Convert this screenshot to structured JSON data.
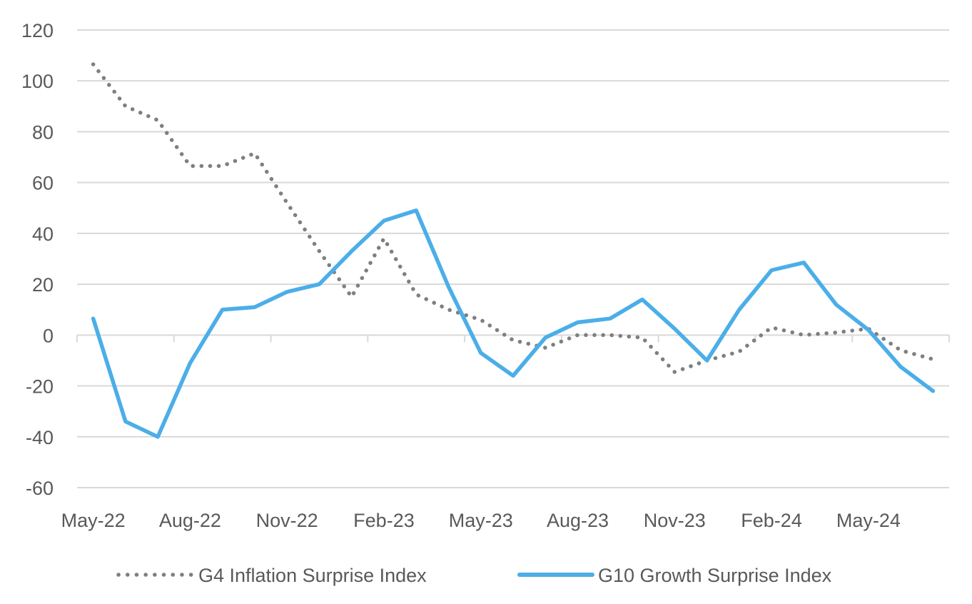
{
  "chart_data": {
    "type": "line",
    "title": "",
    "xlabel": "",
    "ylabel": "",
    "ylim": [
      -60,
      120
    ],
    "yticks": [
      "120",
      "100",
      "80",
      "60",
      "40",
      "20",
      "0",
      "-20",
      "-40",
      "-60"
    ],
    "ytick_values": [
      120,
      100,
      80,
      60,
      40,
      20,
      0,
      -20,
      -40,
      -60
    ],
    "grid": true,
    "legend_position": "bottom",
    "categories": [
      "May-22",
      "Jun-22",
      "Jul-22",
      "Aug-22",
      "Sep-22",
      "Oct-22",
      "Nov-22",
      "Dec-22",
      "Jan-23",
      "Feb-23",
      "Mar-23",
      "Apr-23",
      "May-23",
      "Jun-23",
      "Jul-23",
      "Aug-23",
      "Sep-23",
      "Oct-23",
      "Nov-23",
      "Dec-23",
      "Jan-24",
      "Feb-24",
      "Mar-24",
      "Apr-24",
      "May-24",
      "Jun-24",
      "Jul-24"
    ],
    "xtick_labels": [
      "May-22",
      "Aug-22",
      "Nov-22",
      "Feb-23",
      "May-23",
      "Aug-23",
      "Nov-23",
      "Feb-24",
      "May-24"
    ],
    "series": [
      {
        "name": "G4 Inflation Surprise Index",
        "style": "dotted",
        "color": "#7f7f7f",
        "values": [
          106.5,
          90,
          84.5,
          66.5,
          66.5,
          71.5,
          52,
          33,
          15,
          38,
          16,
          10,
          6,
          -2,
          -5,
          0,
          0,
          -1,
          -14.5,
          -10,
          -6.5,
          3,
          0,
          1,
          2.5,
          -6,
          -9.5
        ]
      },
      {
        "name": "G10 Growth Surprise Index",
        "style": "solid",
        "color": "#4baee8",
        "values": [
          6.5,
          -34,
          -40,
          -11,
          10,
          11,
          17,
          20,
          33,
          45,
          49,
          19,
          -7,
          -16,
          -1,
          5,
          6.5,
          14,
          2.5,
          -10,
          10,
          25.5,
          28.5,
          12,
          2,
          -12.5,
          -22
        ]
      }
    ],
    "colors": {
      "gridline": "#d9d9d9",
      "text": "#595959"
    }
  }
}
